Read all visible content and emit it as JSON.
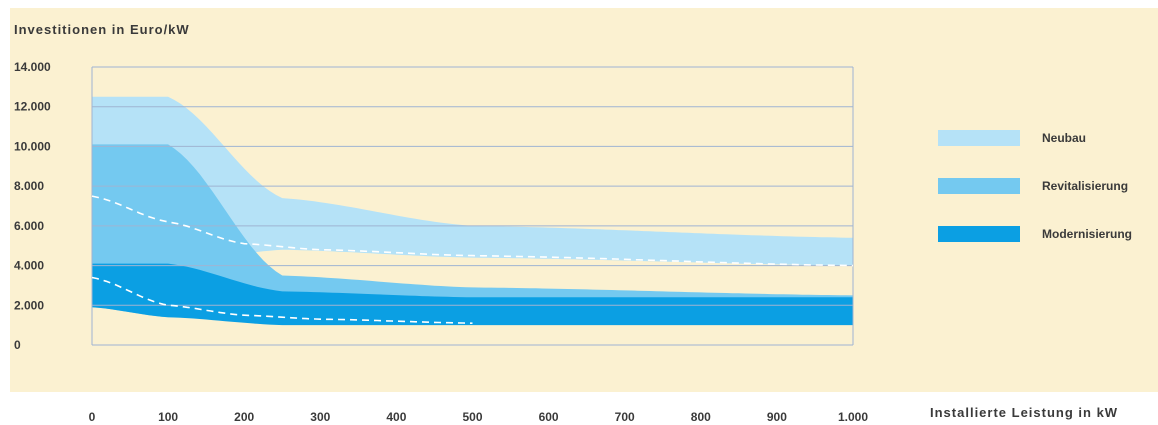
{
  "chart_data": {
    "type": "area",
    "ylabel": "Investitionen in Euro/kW",
    "xlabel": "Installierte Leistung in kW",
    "ylim": [
      0,
      14000
    ],
    "xlim": [
      0,
      1000
    ],
    "yticks": [
      "0",
      "2.000",
      "4.000",
      "6.000",
      "8.000",
      "10.000",
      "12.000",
      "14.000"
    ],
    "xticks": [
      "0",
      "100",
      "200",
      "300",
      "400",
      "500",
      "600",
      "700",
      "800",
      "900",
      "1.000"
    ],
    "grid": true,
    "legend_position": "right",
    "series": [
      {
        "name": "Neubau",
        "color": "#b5e2f7",
        "x": [
          0,
          100,
          250,
          500,
          1000
        ],
        "upper": [
          12500,
          12500,
          7400,
          6000,
          5400
        ],
        "lower": [
          4100,
          4100,
          4800,
          4400,
          4000
        ]
      },
      {
        "name": "Revitalisierung",
        "color": "#74c9f0",
        "x": [
          0,
          100,
          250,
          500,
          1000
        ],
        "upper": [
          10100,
          10100,
          3500,
          2900,
          2500
        ],
        "lower": [
          1900,
          1400,
          1200,
          1100,
          1100
        ]
      },
      {
        "name": "Modernisierung",
        "color": "#0b9fe3",
        "x": [
          0,
          100,
          250,
          500,
          1000
        ],
        "upper": [
          4100,
          4100,
          2700,
          2400,
          2400
        ],
        "lower": [
          1900,
          1400,
          1000,
          1000,
          1000
        ]
      }
    ],
    "dashed_lines": [
      {
        "x": [
          0,
          100,
          200,
          300,
          500,
          1000
        ],
        "y": [
          7500,
          6200,
          5100,
          4800,
          4500,
          4000
        ]
      },
      {
        "x": [
          0,
          100,
          200,
          300,
          500
        ],
        "y": [
          3400,
          2000,
          1500,
          1300,
          1100
        ]
      }
    ]
  }
}
